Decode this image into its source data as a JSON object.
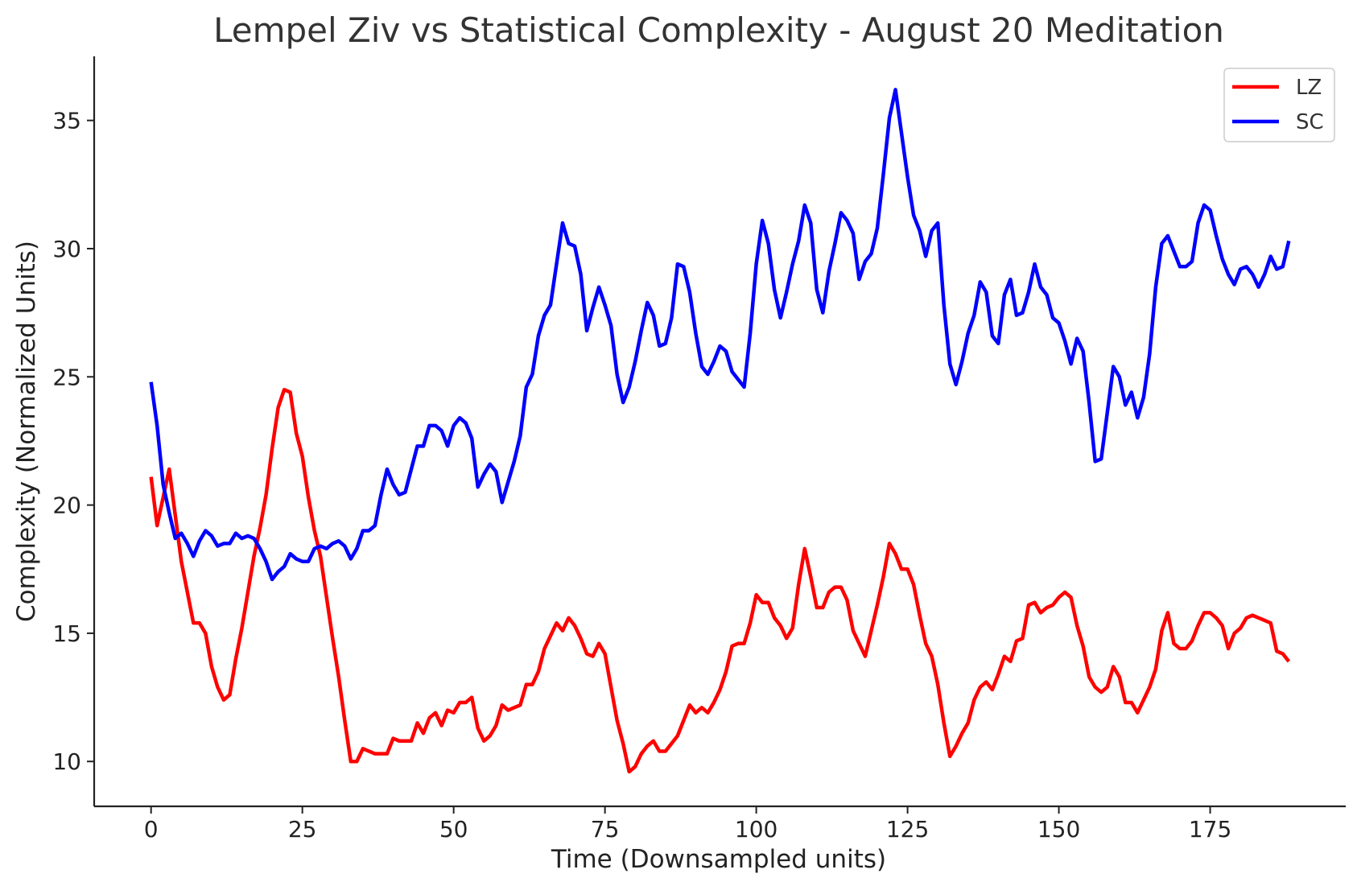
{
  "chart_data": {
    "type": "line",
    "title": "Lempel Ziv vs Statistical Complexity - August 20 Meditation",
    "xlabel": "Time (Downsampled units)",
    "ylabel": "Complexity (Normalized Units)",
    "xlim": [
      -9.4,
      197.4
    ],
    "ylim": [
      8.25,
      37.5
    ],
    "xticks": [
      0,
      25,
      50,
      75,
      100,
      125,
      150,
      175
    ],
    "yticks": [
      10,
      15,
      20,
      25,
      30,
      35
    ],
    "grid": false,
    "legend_position": "top-right",
    "series": [
      {
        "name": "LZ",
        "color": "#ff0000",
        "values": [
          21.1,
          19.2,
          20.3,
          21.4,
          19.6,
          17.8,
          16.6,
          15.4,
          15.4,
          15.0,
          13.7,
          12.9,
          12.4,
          12.6,
          14.0,
          15.2,
          16.6,
          18.0,
          19.1,
          20.4,
          22.2,
          23.8,
          24.5,
          24.4,
          22.8,
          21.9,
          20.3,
          19.0,
          18.0,
          16.4,
          14.8,
          13.3,
          11.6,
          10.0,
          10.0,
          10.5,
          10.4,
          10.3,
          10.3,
          10.3,
          10.9,
          10.8,
          10.8,
          10.8,
          11.5,
          11.1,
          11.7,
          11.9,
          11.4,
          12.0,
          11.9,
          12.3,
          12.3,
          12.5,
          11.3,
          10.8,
          11.0,
          11.4,
          12.2,
          12.0,
          12.1,
          12.2,
          13.0,
          13.0,
          13.5,
          14.4,
          14.9,
          15.4,
          15.1,
          15.6,
          15.3,
          14.8,
          14.2,
          14.1,
          14.6,
          14.2,
          12.9,
          11.6,
          10.7,
          9.6,
          9.8,
          10.3,
          10.6,
          10.8,
          10.4,
          10.4,
          10.7,
          11.0,
          11.6,
          12.2,
          11.9,
          12.1,
          11.9,
          12.3,
          12.8,
          13.5,
          14.5,
          14.6,
          14.6,
          15.4,
          16.5,
          16.2,
          16.2,
          15.6,
          15.3,
          14.8,
          15.2,
          16.9,
          18.3,
          17.2,
          16.0,
          16.0,
          16.6,
          16.8,
          16.8,
          16.3,
          15.1,
          14.6,
          14.1,
          15.1,
          16.1,
          17.2,
          18.5,
          18.1,
          17.5,
          17.5,
          16.9,
          15.7,
          14.6,
          14.1,
          13.0,
          11.5,
          10.2,
          10.6,
          11.1,
          11.5,
          12.4,
          12.9,
          13.1,
          12.8,
          13.4,
          14.1,
          13.9,
          14.7,
          14.8,
          16.1,
          16.2,
          15.8,
          16.0,
          16.1,
          16.4,
          16.6,
          16.4,
          15.3,
          14.5,
          13.3,
          12.9,
          12.7,
          12.9,
          13.7,
          13.3,
          12.3,
          12.3,
          11.9,
          12.4,
          12.9,
          13.6,
          15.1,
          15.8,
          14.6,
          14.4,
          14.4,
          14.7,
          15.3,
          15.8,
          15.8,
          15.6,
          15.3,
          14.4,
          15.0,
          15.2,
          15.6,
          15.7,
          15.6,
          15.5,
          15.4,
          14.3,
          14.2,
          13.9
        ]
      },
      {
        "name": "SC",
        "color": "#0000ff",
        "values": [
          24.8,
          23.1,
          20.8,
          19.7,
          18.7,
          18.9,
          18.5,
          18.0,
          18.6,
          19.0,
          18.8,
          18.4,
          18.5,
          18.5,
          18.9,
          18.7,
          18.8,
          18.7,
          18.3,
          17.8,
          17.1,
          17.4,
          17.6,
          18.1,
          17.9,
          17.8,
          17.8,
          18.3,
          18.4,
          18.3,
          18.5,
          18.6,
          18.4,
          17.9,
          18.3,
          19.0,
          19.0,
          19.2,
          20.4,
          21.4,
          20.8,
          20.4,
          20.5,
          21.4,
          22.3,
          22.3,
          23.1,
          23.1,
          22.9,
          22.3,
          23.1,
          23.4,
          23.2,
          22.6,
          20.7,
          21.2,
          21.6,
          21.3,
          20.1,
          20.9,
          21.7,
          22.7,
          24.6,
          25.1,
          26.6,
          27.4,
          27.8,
          29.4,
          31.0,
          30.2,
          30.1,
          29.0,
          26.8,
          27.7,
          28.5,
          27.8,
          27.0,
          25.1,
          24.0,
          24.6,
          25.6,
          26.8,
          27.9,
          27.4,
          26.2,
          26.3,
          27.3,
          29.4,
          29.3,
          28.3,
          26.7,
          25.4,
          25.1,
          25.6,
          26.2,
          26.0,
          25.2,
          24.9,
          24.6,
          26.7,
          29.4,
          31.1,
          30.2,
          28.4,
          27.3,
          28.3,
          29.4,
          30.3,
          31.7,
          31.0,
          28.4,
          27.5,
          29.1,
          30.2,
          31.4,
          31.1,
          30.6,
          28.8,
          29.5,
          29.8,
          30.8,
          32.9,
          35.1,
          36.2,
          34.5,
          32.8,
          31.3,
          30.7,
          29.7,
          30.7,
          31.0,
          27.8,
          25.5,
          24.7,
          25.6,
          26.7,
          27.4,
          28.7,
          28.3,
          26.6,
          26.3,
          28.2,
          28.8,
          27.4,
          27.5,
          28.3,
          29.4,
          28.5,
          28.2,
          27.3,
          27.1,
          26.4,
          25.5,
          26.5,
          26.0,
          24.0,
          21.7,
          21.8,
          23.6,
          25.4,
          25.0,
          23.9,
          24.4,
          23.4,
          24.2,
          25.9,
          28.5,
          30.2,
          30.5,
          29.9,
          29.3,
          29.3,
          29.5,
          31.0,
          31.7,
          31.5,
          30.5,
          29.6,
          29.0,
          28.6,
          29.2,
          29.3,
          29.0,
          28.5,
          29.0,
          29.7,
          29.2,
          29.3,
          30.3
        ]
      }
    ]
  }
}
